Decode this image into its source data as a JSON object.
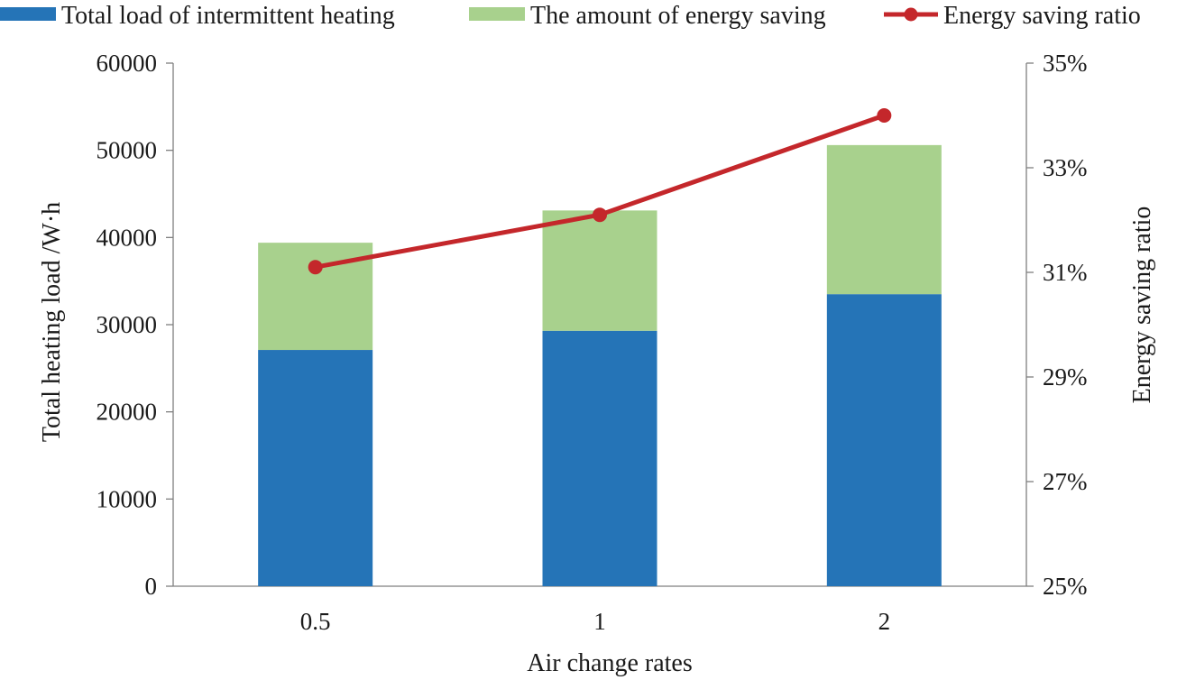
{
  "chart_data": {
    "type": "bar",
    "stacked": true,
    "categories": [
      "0.5",
      "1",
      "2"
    ],
    "series": [
      {
        "name": "Total load of intermittent heating",
        "kind": "bar",
        "axis": "left",
        "color": "#2574b7",
        "values": [
          27100,
          29300,
          33500
        ]
      },
      {
        "name": "The amount of energy saving",
        "kind": "bar",
        "axis": "left",
        "color": "#a8d18d",
        "values": [
          12300,
          13800,
          17100
        ]
      },
      {
        "name": "Energy saving ratio",
        "kind": "line",
        "axis": "right",
        "color": "#c4272b",
        "values": [
          31.1,
          32.1,
          34.0
        ]
      }
    ],
    "xlabel": "Air change rates",
    "ylabel": "Total heating load /W·h",
    "y2label": "Energy saving ratio",
    "ylim": [
      0,
      60000
    ],
    "y_ticks": [
      "0",
      "10000",
      "20000",
      "30000",
      "40000",
      "50000",
      "60000"
    ],
    "y2lim": [
      25,
      35
    ],
    "y2_ticks": [
      "25%",
      "27%",
      "29%",
      "31%",
      "33%",
      "35%"
    ],
    "grid": false,
    "legend_position": "top"
  }
}
